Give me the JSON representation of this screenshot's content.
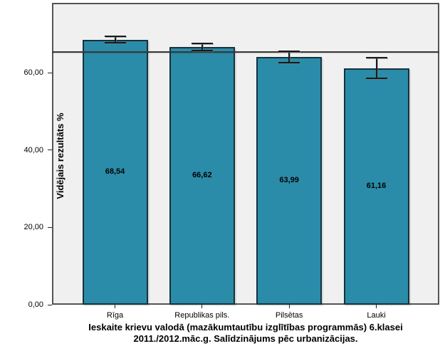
{
  "chart_data": {
    "type": "bar",
    "title": "Ieskaite krievu valodā (mazākumtautību izglītības programmās) 6.klasei 2011./2012.māc.g. Salīdzinājums pēc urbanizācijas.",
    "title_lines": [
      "Ieskaite krievu valodā (mazākumtautību izglītības programmās) 6.klasei",
      "2011./2012.māc.g. Salīdzinājums pēc urbanizācijas."
    ],
    "xlabel": "",
    "ylabel": "Vidējais rezultāts %",
    "categories": [
      "Rīga",
      "Republikas pils.",
      "Pilsētas",
      "Lauki"
    ],
    "values": [
      68.54,
      66.62,
      63.99,
      61.16
    ],
    "value_labels": [
      "68,54",
      "66,62",
      "63,99",
      "61,16"
    ],
    "error_bars": [
      {
        "low": 67.7,
        "high": 69.4
      },
      {
        "low": 65.7,
        "high": 67.6
      },
      {
        "low": 62.5,
        "high": 65.5
      },
      {
        "low": 58.5,
        "high": 63.85
      }
    ],
    "reference_line": 65.3,
    "ylim": [
      0,
      78
    ],
    "yticks": [
      {
        "value": 0,
        "label": "0,00"
      },
      {
        "value": 20,
        "label": "20,00"
      },
      {
        "value": 40,
        "label": "40,00"
      },
      {
        "value": 60,
        "label": "60,00"
      }
    ],
    "grid": false,
    "legend_position": "none"
  },
  "colors": {
    "bar_fill": "#2a8ca9",
    "bar_border": "#14333d",
    "plot_bg": "#f0f0f0",
    "frame_border": "#545454",
    "reference_line": "#3a3a3a",
    "error_bar": "#1a1a1a",
    "page_bg": "#ffffff",
    "text": "#000000"
  }
}
